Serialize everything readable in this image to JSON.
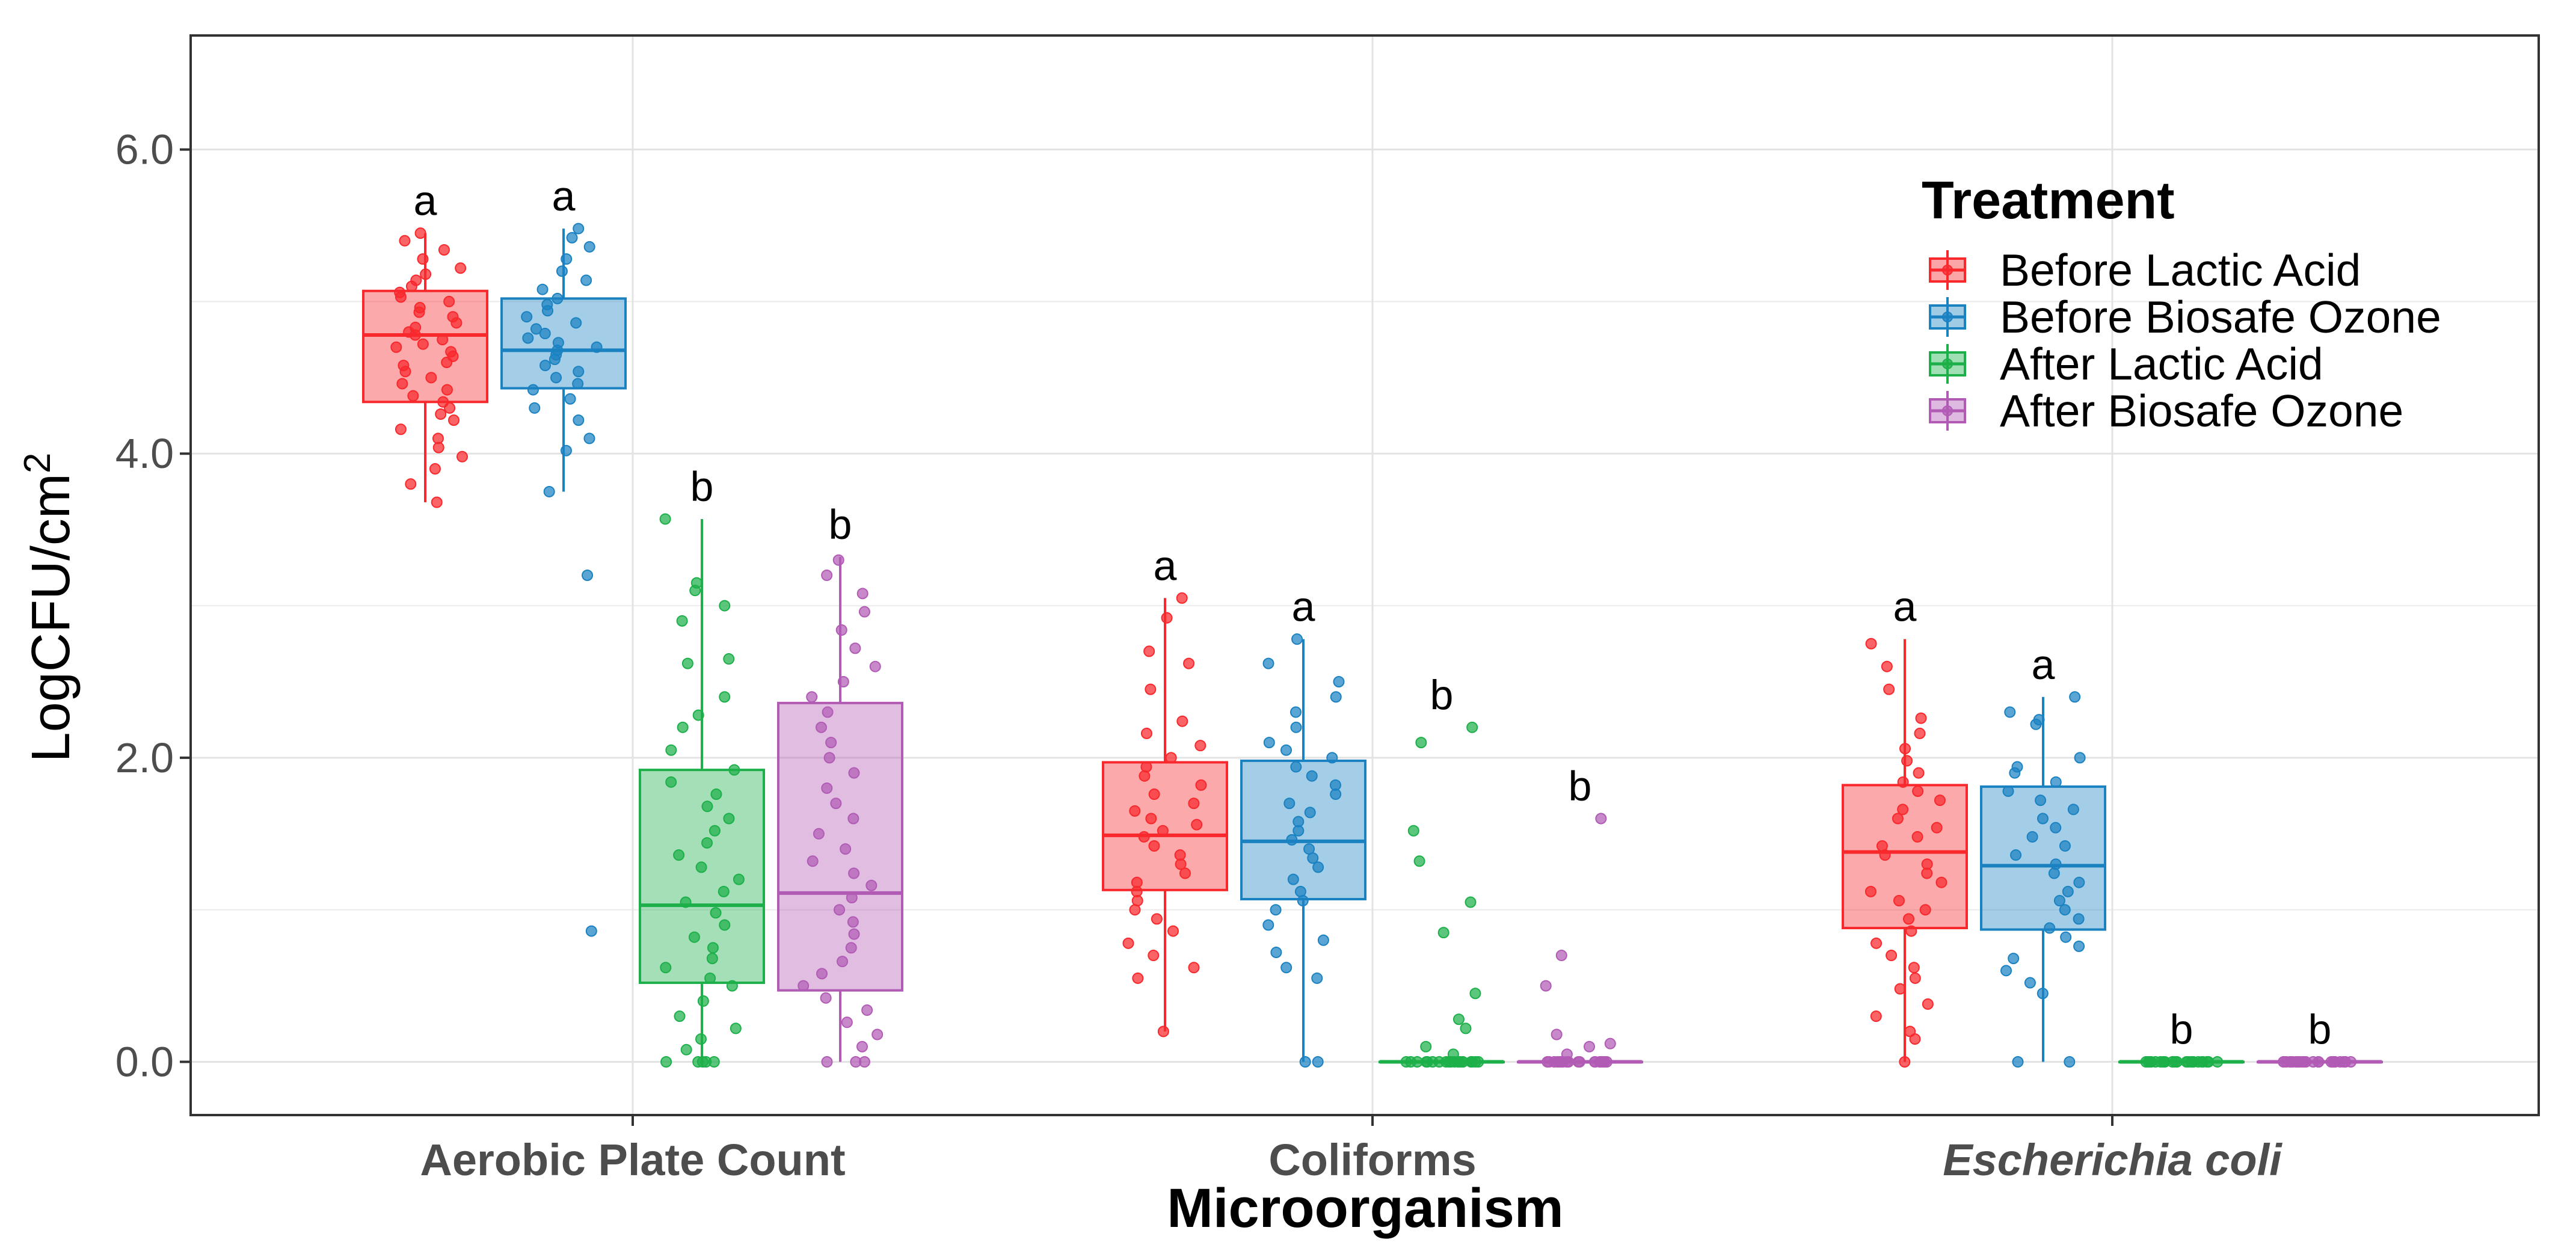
{
  "chart_data": {
    "type": "boxplot",
    "xlabel": "Microorganism",
    "ylabel_base": "LogCFU",
    "ylabel_slash": "/",
    "ylabel_unit": "cm",
    "ylabel_exponent": "2",
    "ylim": [
      -0.35,
      6.75
    ],
    "y_ticks": [
      {
        "value": 0.0,
        "label": "0.0"
      },
      {
        "value": 2.0,
        "label": "2.0"
      },
      {
        "value": 4.0,
        "label": "4.0"
      },
      {
        "value": 6.0,
        "label": "6.0"
      }
    ],
    "minor_gridlines": [
      1.0,
      3.0,
      5.0
    ],
    "legend": {
      "title": "Treatment",
      "position": "top-right",
      "entries": [
        {
          "label": "Before Lactic Acid",
          "color": "#F8282C"
        },
        {
          "label": "Before Biosafe Ozone",
          "color": "#1B82C2"
        },
        {
          "label": "After Lactic Acid",
          "color": "#1DB04A"
        },
        {
          "label": "After Biosafe Ozone",
          "color": "#B15BB5"
        }
      ]
    },
    "categories": [
      {
        "label": "Aerobic Plate Count",
        "italic": false,
        "groups": [
          {
            "treatment": "Before Lactic Acid",
            "min": 3.68,
            "q1": 4.34,
            "median": 4.78,
            "q3": 5.07,
            "max": 5.45,
            "letter": "a",
            "points": [
              3.68,
              3.8,
              3.9,
              3.98,
              4.04,
              4.1,
              4.16,
              4.22,
              4.26,
              4.3,
              4.34,
              4.38,
              4.42,
              4.46,
              4.5,
              4.54,
              4.58,
              4.6,
              4.64,
              4.67,
              4.7,
              4.72,
              4.75,
              4.78,
              4.8,
              4.83,
              4.86,
              4.9,
              4.93,
              4.96,
              5.0,
              5.03,
              5.06,
              5.1,
              5.14,
              5.18,
              5.22,
              5.28,
              5.34,
              5.4,
              5.45
            ]
          },
          {
            "treatment": "Before Biosafe Ozone",
            "min": 3.75,
            "q1": 4.43,
            "median": 4.68,
            "q3": 5.02,
            "max": 5.48,
            "letter": "a",
            "points": [
              0.86,
              3.2,
              3.75,
              4.02,
              4.1,
              4.22,
              4.3,
              4.36,
              4.42,
              4.46,
              4.5,
              4.54,
              4.58,
              4.62,
              4.65,
              4.68,
              4.7,
              4.73,
              4.76,
              4.79,
              4.82,
              4.86,
              4.9,
              4.94,
              4.98,
              5.02,
              5.08,
              5.14,
              5.2,
              5.28,
              5.36,
              5.42,
              5.48
            ]
          },
          {
            "treatment": "After Lactic Acid",
            "min": 0.0,
            "q1": 0.52,
            "median": 1.03,
            "q3": 1.92,
            "max": 3.57,
            "letter": "b",
            "points": [
              0,
              0,
              0,
              0,
              0,
              0.08,
              0.15,
              0.22,
              0.3,
              0.4,
              0.5,
              0.55,
              0.62,
              0.68,
              0.75,
              0.82,
              0.9,
              0.98,
              1.05,
              1.12,
              1.2,
              1.28,
              1.36,
              1.44,
              1.52,
              1.6,
              1.68,
              1.76,
              1.84,
              1.92,
              2.05,
              2.2,
              2.28,
              2.4,
              2.62,
              2.65,
              2.9,
              3.0,
              3.1,
              3.15,
              3.57
            ]
          },
          {
            "treatment": "After Biosafe Ozone",
            "min": 0.0,
            "q1": 0.47,
            "median": 1.11,
            "q3": 2.36,
            "max": 3.32,
            "letter": "b",
            "points": [
              0,
              0,
              0,
              0.1,
              0.18,
              0.26,
              0.34,
              0.42,
              0.5,
              0.58,
              0.66,
              0.75,
              0.84,
              0.92,
              1.0,
              1.08,
              1.16,
              1.24,
              1.32,
              1.4,
              1.5,
              1.6,
              1.7,
              1.8,
              1.9,
              2.0,
              2.1,
              2.2,
              2.3,
              2.4,
              2.5,
              2.6,
              2.72,
              2.84,
              2.96,
              3.08,
              3.2,
              3.3
            ]
          }
        ]
      },
      {
        "label": "Coliforms",
        "italic": false,
        "groups": [
          {
            "treatment": "Before Lactic Acid",
            "min": 0.2,
            "q1": 1.13,
            "median": 1.49,
            "q3": 1.97,
            "max": 3.05,
            "letter": "a",
            "points": [
              0.2,
              0.55,
              0.62,
              0.7,
              0.78,
              0.86,
              0.94,
              1.0,
              1.06,
              1.12,
              1.18,
              1.24,
              1.3,
              1.36,
              1.42,
              1.48,
              1.52,
              1.56,
              1.6,
              1.65,
              1.7,
              1.76,
              1.82,
              1.88,
              1.94,
              2.0,
              2.08,
              2.16,
              2.24,
              2.45,
              2.62,
              2.7,
              2.92,
              3.05
            ]
          },
          {
            "treatment": "Before Biosafe Ozone",
            "min": 0.0,
            "q1": 1.07,
            "median": 1.45,
            "q3": 1.98,
            "max": 2.78,
            "letter": "a",
            "points": [
              0,
              0,
              0.55,
              0.62,
              0.72,
              0.8,
              0.9,
              1.0,
              1.06,
              1.12,
              1.2,
              1.28,
              1.34,
              1.4,
              1.46,
              1.52,
              1.58,
              1.64,
              1.7,
              1.76,
              1.82,
              1.88,
              1.94,
              2.0,
              2.05,
              2.1,
              2.2,
              2.3,
              2.4,
              2.5,
              2.62,
              2.78
            ]
          },
          {
            "treatment": "After Lactic Acid",
            "min": 0.0,
            "q1": 0.0,
            "median": 0.0,
            "q3": 0.0,
            "max": 0.0,
            "letter": "b",
            "points": [
              0,
              0,
              0,
              0,
              0,
              0,
              0,
              0,
              0,
              0,
              0,
              0,
              0,
              0,
              0,
              0,
              0,
              0,
              0,
              0,
              0.05,
              0.1,
              0.22,
              0.28,
              0.45,
              0.85,
              1.05,
              1.32,
              1.52,
              2.1,
              2.2
            ]
          },
          {
            "treatment": "After Biosafe Ozone",
            "min": 0.0,
            "q1": 0.0,
            "median": 0.0,
            "q3": 0.0,
            "max": 0.0,
            "letter": "b",
            "points": [
              0,
              0,
              0,
              0,
              0,
              0,
              0,
              0,
              0,
              0,
              0,
              0,
              0,
              0,
              0,
              0,
              0,
              0,
              0,
              0.05,
              0.1,
              0.12,
              0.18,
              0.5,
              0.7,
              1.6
            ]
          }
        ]
      },
      {
        "label": "Escherichia coli",
        "italic": true,
        "groups": [
          {
            "treatment": "Before Lactic Acid",
            "min": 0.0,
            "q1": 0.88,
            "median": 1.38,
            "q3": 1.82,
            "max": 2.78,
            "letter": "a",
            "points": [
              0,
              0.15,
              0.2,
              0.3,
              0.38,
              0.48,
              0.55,
              0.62,
              0.7,
              0.78,
              0.86,
              0.94,
              1.0,
              1.06,
              1.12,
              1.18,
              1.24,
              1.3,
              1.36,
              1.42,
              1.48,
              1.54,
              1.6,
              1.66,
              1.72,
              1.78,
              1.84,
              1.9,
              1.98,
              2.06,
              2.16,
              2.26,
              2.45,
              2.6,
              2.75
            ]
          },
          {
            "treatment": "Before Biosafe Ozone",
            "min": 0.0,
            "q1": 0.87,
            "median": 1.29,
            "q3": 1.81,
            "max": 2.4,
            "letter": "a",
            "points": [
              0,
              0,
              0.45,
              0.52,
              0.6,
              0.68,
              0.76,
              0.82,
              0.88,
              0.94,
              1.0,
              1.06,
              1.12,
              1.18,
              1.24,
              1.3,
              1.36,
              1.42,
              1.48,
              1.54,
              1.6,
              1.66,
              1.72,
              1.78,
              1.84,
              1.9,
              1.94,
              2.0,
              2.22,
              2.25,
              2.3,
              2.4
            ]
          },
          {
            "treatment": "After Lactic Acid",
            "min": 0.0,
            "q1": 0.0,
            "median": 0.0,
            "q3": 0.0,
            "max": 0.0,
            "letter": "b",
            "points": [
              0,
              0,
              0,
              0,
              0,
              0,
              0,
              0,
              0,
              0,
              0,
              0,
              0,
              0,
              0,
              0,
              0,
              0,
              0,
              0,
              0,
              0,
              0,
              0
            ]
          },
          {
            "treatment": "After Biosafe Ozone",
            "min": 0.0,
            "q1": 0.0,
            "median": 0.0,
            "q3": 0.0,
            "max": 0.0,
            "letter": "b",
            "points": [
              0,
              0,
              0,
              0,
              0,
              0,
              0,
              0,
              0,
              0,
              0,
              0,
              0,
              0,
              0,
              0,
              0,
              0,
              0,
              0,
              0,
              0,
              0,
              0
            ]
          }
        ]
      }
    ]
  }
}
